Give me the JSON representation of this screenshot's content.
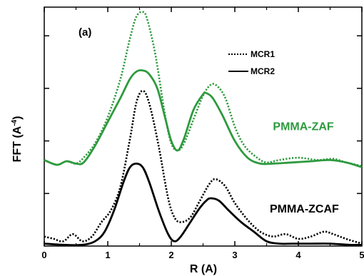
{
  "chart_data": {
    "type": "line",
    "panel_label": "(a)",
    "xlabel": "R (A)",
    "ylabel": "FFT (A",
    "ylabel_exponent": "-4",
    "ylabel_close": ")",
    "xlim": [
      0,
      5
    ],
    "x_ticks": [
      0,
      1,
      2,
      3,
      4,
      5
    ],
    "x_tick_labels": [
      "0",
      "1",
      "2",
      "3",
      "4",
      "5"
    ],
    "ylim": [
      0,
      1
    ],
    "legend": {
      "position": "top-center",
      "entries": [
        {
          "label": "MCR1",
          "style": "dotted"
        },
        {
          "label": "MCR2",
          "style": "solid"
        }
      ]
    },
    "group_labels": [
      {
        "text": "PMMA-ZAF",
        "color": "#2e9a3e",
        "anchor_x": 3.6,
        "anchor_y": 0.485
      },
      {
        "text": "PMMA-ZCAF",
        "color": "#000000",
        "anchor_x": 3.55,
        "anchor_y": 0.14
      }
    ],
    "colors": {
      "zaf": "#2e9a3e",
      "zcaf": "#000000"
    },
    "series": [
      {
        "name": "MCR1",
        "group": "PMMA-ZAF",
        "style": "dotted",
        "x": [
          0,
          0.2,
          0.35,
          0.5,
          0.62,
          0.8,
          1.0,
          1.2,
          1.35,
          1.45,
          1.55,
          1.62,
          1.75,
          1.9,
          2.0,
          2.1,
          2.2,
          2.35,
          2.5,
          2.62,
          2.72,
          2.85,
          3.0,
          3.15,
          3.35,
          3.5,
          3.7,
          4.0,
          4.3,
          4.55,
          4.75,
          5.0
        ],
        "y": [
          0.36,
          0.34,
          0.355,
          0.345,
          0.37,
          0.43,
          0.54,
          0.7,
          0.87,
          0.96,
          0.98,
          0.95,
          0.8,
          0.55,
          0.43,
          0.4,
          0.43,
          0.53,
          0.63,
          0.675,
          0.67,
          0.62,
          0.5,
          0.42,
          0.37,
          0.35,
          0.36,
          0.37,
          0.36,
          0.365,
          0.35,
          0.335
        ]
      },
      {
        "name": "MCR2",
        "group": "PMMA-ZAF",
        "style": "solid",
        "x": [
          0,
          0.2,
          0.35,
          0.5,
          0.62,
          0.8,
          1.0,
          1.2,
          1.35,
          1.45,
          1.55,
          1.65,
          1.78,
          1.9,
          2.0,
          2.1,
          2.2,
          2.35,
          2.5,
          2.55,
          2.65,
          2.8,
          3.0,
          3.2,
          3.4,
          3.6,
          3.9,
          4.2,
          4.5,
          4.75,
          5.0
        ],
        "y": [
          0.36,
          0.34,
          0.355,
          0.345,
          0.35,
          0.42,
          0.52,
          0.62,
          0.7,
          0.73,
          0.735,
          0.72,
          0.66,
          0.54,
          0.44,
          0.4,
          0.45,
          0.57,
          0.635,
          0.64,
          0.62,
          0.55,
          0.44,
          0.37,
          0.345,
          0.345,
          0.35,
          0.355,
          0.36,
          0.35,
          0.33
        ]
      },
      {
        "name": "MCR1",
        "group": "PMMA-ZCAF",
        "style": "dotted",
        "x": [
          0,
          0.15,
          0.3,
          0.45,
          0.6,
          0.75,
          0.9,
          1.05,
          1.2,
          1.35,
          1.45,
          1.55,
          1.65,
          1.8,
          1.95,
          2.05,
          2.15,
          2.3,
          2.45,
          2.6,
          2.7,
          2.85,
          3.0,
          3.2,
          3.4,
          3.6,
          3.8,
          4.0,
          4.2,
          4.4,
          4.55,
          4.75,
          5.0
        ],
        "y": [
          0.04,
          0.03,
          0.02,
          0.05,
          0.02,
          0.04,
          0.1,
          0.15,
          0.25,
          0.45,
          0.6,
          0.65,
          0.6,
          0.42,
          0.2,
          0.12,
          0.1,
          0.12,
          0.19,
          0.26,
          0.28,
          0.25,
          0.18,
          0.11,
          0.06,
          0.04,
          0.05,
          0.03,
          0.04,
          0.06,
          0.05,
          0.03,
          0.01
        ]
      },
      {
        "name": "MCR2",
        "group": "PMMA-ZCAF",
        "style": "solid",
        "x": [
          0,
          0.3,
          0.6,
          0.8,
          0.95,
          1.1,
          1.25,
          1.35,
          1.45,
          1.55,
          1.65,
          1.8,
          1.95,
          2.05,
          2.15,
          2.3,
          2.45,
          2.55,
          2.62,
          2.75,
          2.9,
          3.1,
          3.3,
          3.5,
          3.7,
          3.9,
          4.2,
          4.5,
          4.8,
          5.0
        ],
        "y": [
          0.01,
          0.005,
          0.005,
          0.02,
          0.06,
          0.15,
          0.27,
          0.33,
          0.345,
          0.33,
          0.27,
          0.15,
          0.05,
          0.02,
          0.04,
          0.1,
          0.16,
          0.19,
          0.2,
          0.19,
          0.15,
          0.1,
          0.06,
          0.02,
          0.01,
          0.01,
          0.01,
          0.01,
          0.005,
          0.005
        ]
      }
    ]
  }
}
